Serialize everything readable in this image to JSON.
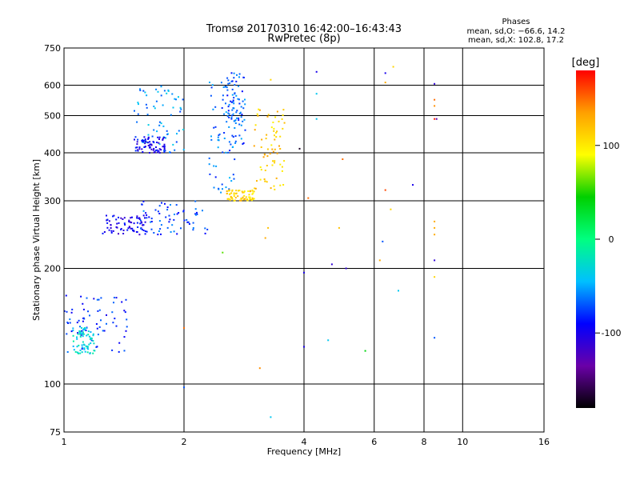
{
  "chart_data": {
    "type": "scatter",
    "title": "Tromsø 20170310 16:42:00–16:43:43",
    "subtitle": "RwPretec (8p)",
    "xlabel": "Frequency [MHz]",
    "ylabel": "Stationary phase Virtual Height [km]",
    "x_scale": "log",
    "y_scale": "log",
    "xlim": [
      1,
      16
    ],
    "ylim": [
      75,
      750
    ],
    "x_ticks": [
      1,
      2,
      4,
      6,
      8,
      10,
      16
    ],
    "y_ticks": [
      75,
      100,
      200,
      300,
      400,
      500,
      600,
      750
    ],
    "grid": true,
    "info": {
      "heading": "Phases",
      "line1": "mean, sd,O: −66.6, 14.2",
      "line2": "mean, sd,X: 102.8, 17.2"
    },
    "colorbar": {
      "label": "[deg]",
      "range": [
        -180,
        180
      ],
      "ticks": [
        100,
        0,
        -100
      ],
      "colors": [
        "#000000",
        "#6a00a8",
        "#0000ff",
        "#00c0ff",
        "#00ff80",
        "#00d000",
        "#ffff00",
        "#ffa000",
        "#ff0000"
      ]
    },
    "clusters": [
      {
        "f": [
          1.25,
          1.6
        ],
        "h": [
          245,
          275
        ],
        "phase": -100
      },
      {
        "f": [
          1.55,
          2.3
        ],
        "h": [
          245,
          300
        ],
        "phase": -75
      },
      {
        "f": [
          2.3,
          2.7
        ],
        "h": [
          300,
          620
        ],
        "phase": -65
      },
      {
        "f": [
          2.55,
          2.85
        ],
        "h": [
          420,
          650
        ],
        "phase": -70
      },
      {
        "f": [
          2.55,
          3.0
        ],
        "h": [
          300,
          320
        ],
        "phase": 110
      },
      {
        "f": [
          3.0,
          3.6
        ],
        "h": [
          320,
          520
        ],
        "phase": 115
      },
      {
        "f": [
          1.0,
          1.45
        ],
        "h": [
          120,
          170
        ],
        "phase": -80
      },
      {
        "f": [
          1.05,
          1.2
        ],
        "h": [
          120,
          140
        ],
        "phase": -30
      },
      {
        "f": [
          1.5,
          2.0
        ],
        "h": [
          400,
          600
        ],
        "phase": -55
      },
      {
        "f": [
          1.5,
          1.8
        ],
        "h": [
          400,
          440
        ],
        "phase": -95
      }
    ],
    "sparse_points": [
      {
        "x": 3.3,
        "y": 620,
        "phase": 110
      },
      {
        "x": 3.25,
        "y": 255,
        "phase": 120
      },
      {
        "x": 3.2,
        "y": 240,
        "phase": 130
      },
      {
        "x": 3.1,
        "y": 110,
        "phase": 140
      },
      {
        "x": 3.3,
        "y": 82,
        "phase": -40
      },
      {
        "x": 3.9,
        "y": 410,
        "phase": -170
      },
      {
        "x": 4.0,
        "y": 195,
        "phase": -100
      },
      {
        "x": 4.0,
        "y": 125,
        "phase": -100
      },
      {
        "x": 4.3,
        "y": 570,
        "phase": -40
      },
      {
        "x": 4.3,
        "y": 490,
        "phase": -40
      },
      {
        "x": 4.3,
        "y": 650,
        "phase": -100
      },
      {
        "x": 4.6,
        "y": 130,
        "phase": -40
      },
      {
        "x": 4.7,
        "y": 205,
        "phase": -110
      },
      {
        "x": 4.9,
        "y": 255,
        "phase": 120
      },
      {
        "x": 5.0,
        "y": 385,
        "phase": 150
      },
      {
        "x": 5.1,
        "y": 200,
        "phase": -110
      },
      {
        "x": 5.7,
        "y": 122,
        "phase": 40
      },
      {
        "x": 6.2,
        "y": 210,
        "phase": 130
      },
      {
        "x": 6.3,
        "y": 235,
        "phase": -70
      },
      {
        "x": 6.4,
        "y": 320,
        "phase": 160
      },
      {
        "x": 6.4,
        "y": 610,
        "phase": 130
      },
      {
        "x": 6.4,
        "y": 645,
        "phase": -100
      },
      {
        "x": 6.6,
        "y": 285,
        "phase": 110
      },
      {
        "x": 6.7,
        "y": 670,
        "phase": 110
      },
      {
        "x": 6.9,
        "y": 175,
        "phase": -40
      },
      {
        "x": 7.5,
        "y": 330,
        "phase": -100
      },
      {
        "x": 8.5,
        "y": 605,
        "phase": -110
      },
      {
        "x": 8.5,
        "y": 550,
        "phase": 150
      },
      {
        "x": 8.5,
        "y": 530,
        "phase": 140
      },
      {
        "x": 8.5,
        "y": 490,
        "phase": 170
      },
      {
        "x": 8.6,
        "y": 490,
        "phase": -130
      },
      {
        "x": 8.5,
        "y": 265,
        "phase": 130
      },
      {
        "x": 8.5,
        "y": 255,
        "phase": 130
      },
      {
        "x": 8.5,
        "y": 245,
        "phase": 130
      },
      {
        "x": 8.5,
        "y": 210,
        "phase": -110
      },
      {
        "x": 8.5,
        "y": 190,
        "phase": 110
      },
      {
        "x": 8.5,
        "y": 132,
        "phase": -70
      },
      {
        "x": 2.0,
        "y": 98,
        "phase": -70
      },
      {
        "x": 2.0,
        "y": 140,
        "phase": 150
      },
      {
        "x": 2.5,
        "y": 220,
        "phase": 60
      },
      {
        "x": 4.1,
        "y": 305,
        "phase": 150
      }
    ]
  }
}
